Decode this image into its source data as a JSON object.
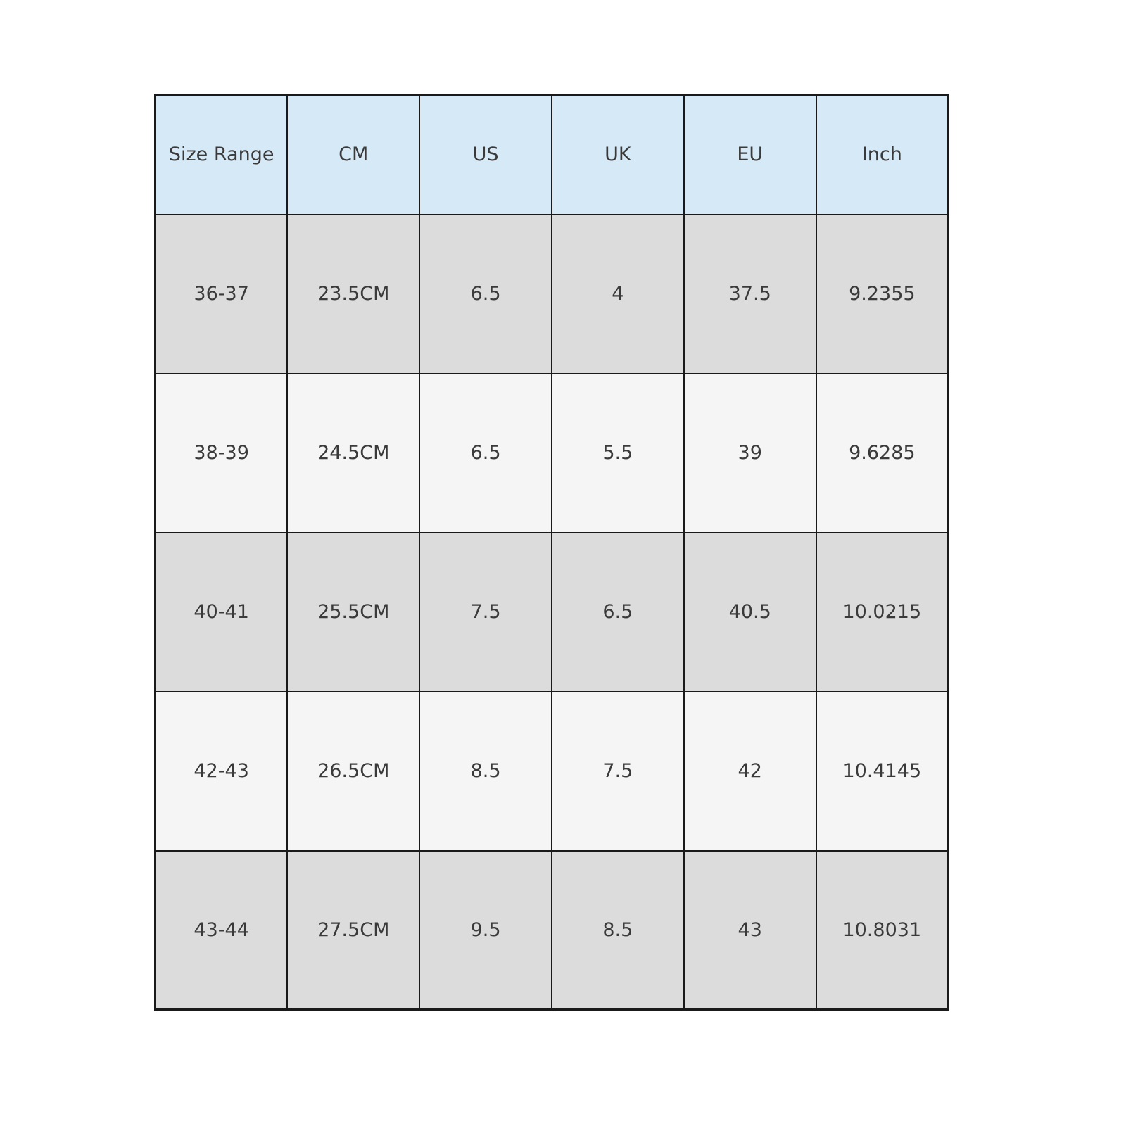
{
  "page": {
    "background": "#ffffff"
  },
  "chart_data": {
    "type": "table",
    "title": "",
    "columns": [
      "Size Range",
      "CM",
      "US",
      "UK",
      "EU",
      "Inch"
    ],
    "rows": [
      [
        "36-37",
        "23.5CM",
        "6.5",
        "4",
        "37.5",
        "9.2355"
      ],
      [
        "38-39",
        "24.5CM",
        "6.5",
        "5.5",
        "39",
        "9.6285"
      ],
      [
        "40-41",
        "25.5CM",
        "7.5",
        "6.5",
        "40.5",
        "10.0215"
      ],
      [
        "42-43",
        "26.5CM",
        "8.5",
        "7.5",
        "42",
        "10.4145"
      ],
      [
        "43-44",
        "27.5CM",
        "9.5",
        "8.5",
        "43",
        "10.8031"
      ]
    ],
    "layout": {
      "header_position": "top",
      "grid": true,
      "row_striping": "odd-gray-even-light"
    },
    "colors": {
      "header_bg": "#d6e9f7",
      "row_alt_bg": "#dcdcdc",
      "row_bg": "#f5f5f5",
      "border": "#1a1a1a",
      "text": "#3a3a3a"
    }
  }
}
